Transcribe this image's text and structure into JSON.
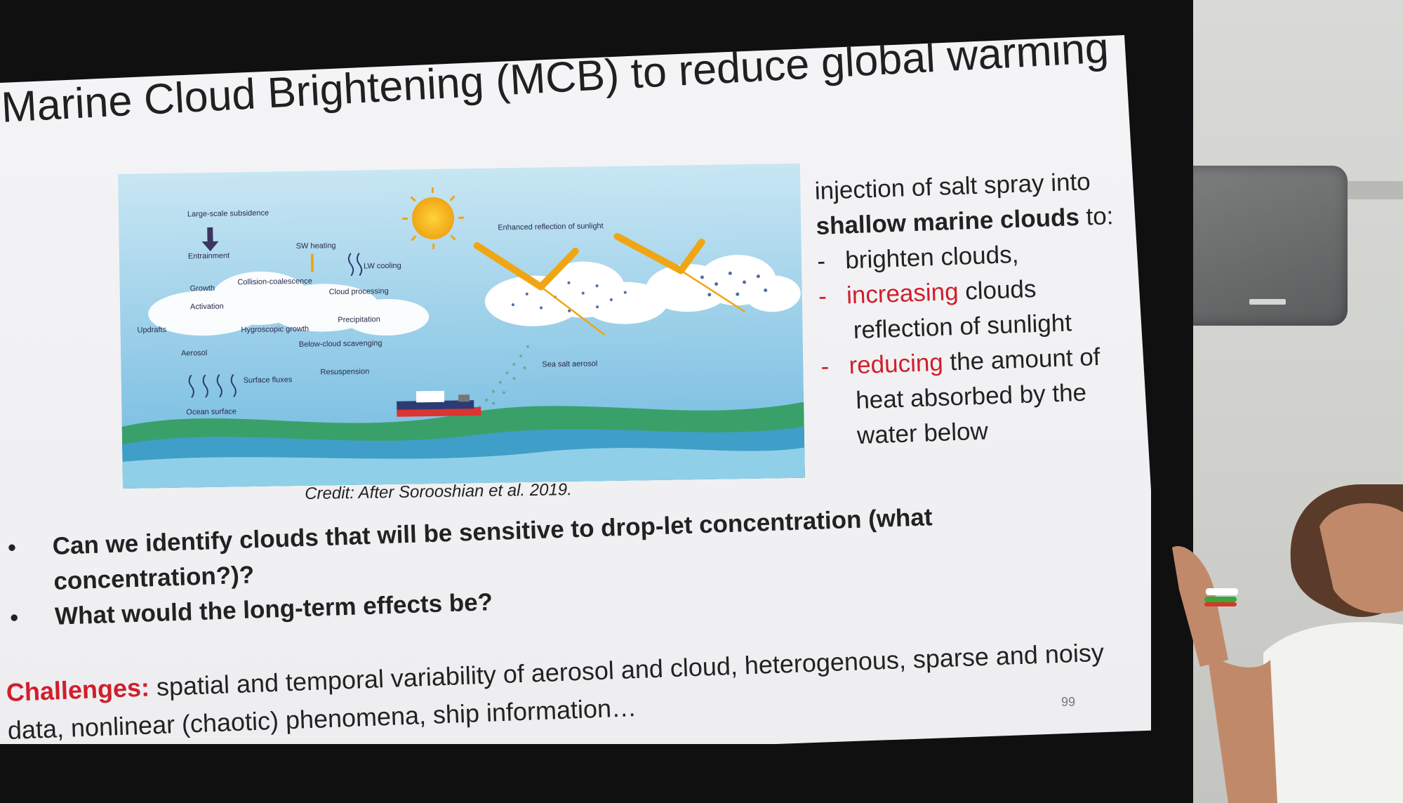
{
  "slide": {
    "title": "Marine Cloud Brightening (MCB) to reduce global warming",
    "figure": {
      "labels": {
        "subsidence": "Large-scale subsidence",
        "entrainment": "Entrainment",
        "sw_heating": "SW heating",
        "lw_cooling": "LW cooling",
        "growth": "Growth",
        "collision": "Collision-coalescence",
        "cloud_processing": "Cloud processing",
        "activation": "Activation",
        "precipitation": "Precipitation",
        "updrafts": "Updrafts",
        "hygroscopic": "Hygroscopic growth",
        "below_cloud": "Below-cloud scavenging",
        "aerosol": "Aerosol",
        "resuspension": "Resuspension",
        "surface_fluxes": "Surface fluxes",
        "ocean_surface": "Ocean surface",
        "enhanced_reflection": "Enhanced reflection of sunlight",
        "sea_salt": "Sea salt aerosol"
      },
      "colors": {
        "sky_top": "#bfe1f1",
        "sky_bottom": "#6bb7de",
        "sea": "#4aa8c9",
        "sun": "#f5b81a",
        "arrow": "#f0a614",
        "cloud": "#ffffff"
      }
    },
    "credit": "Credit: After Sorooshian et al. 2019.",
    "side": {
      "line1": "injection of salt spray into",
      "line2_bold": "shallow marine clouds",
      "line2_rest": " to:",
      "dash": "-",
      "b1": "brighten clouds,",
      "b2_red": "increasing",
      "b2_rest": " clouds",
      "b2_line2": "reflection of sunlight",
      "b3_red": "reducing",
      "b3_rest": " the amount of",
      "b3_line2": "heat absorbed by the",
      "b3_line3": "water below"
    },
    "questions": {
      "bullet": "•",
      "q1_line1": "Can we identify clouds that will be sensitive to drop-let concentration (what",
      "q1_line2": "concentration?)?",
      "q2": "What would the long-term effects be?"
    },
    "challenges": {
      "label": "Challenges:",
      "line1": " spatial and temporal variability of aerosol and cloud, heterogenous, sparse and noisy",
      "line2": "data, nonlinear (chaotic) phenomena, ship information…"
    },
    "page_number": "99"
  }
}
